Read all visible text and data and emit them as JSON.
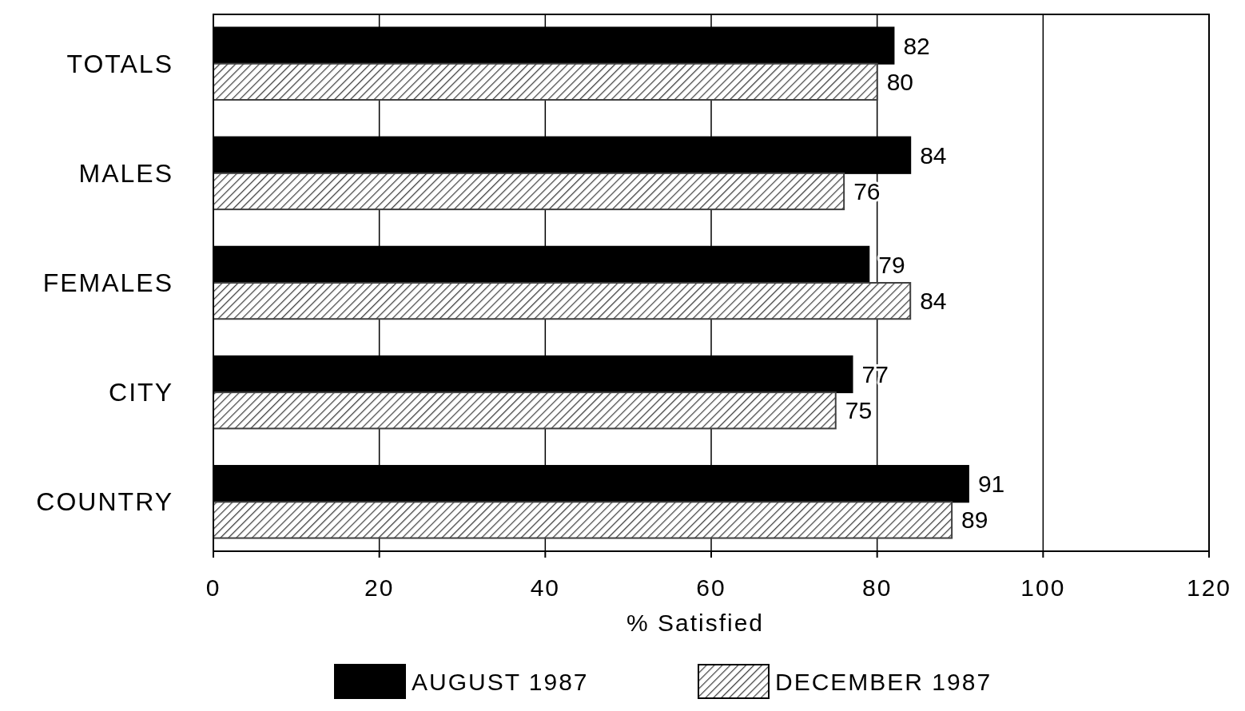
{
  "chart_data": {
    "type": "bar",
    "orientation": "horizontal",
    "categories": [
      "TOTALS",
      "MALES",
      "FEMALES",
      "CITY",
      "COUNTRY"
    ],
    "series": [
      {
        "name": "AUGUST 1987",
        "color": "#000000",
        "values": [
          82,
          84,
          79,
          77,
          91
        ]
      },
      {
        "name": "DECEMBER 1987",
        "color": "#404040",
        "values": [
          80,
          76,
          84,
          75,
          89
        ]
      }
    ],
    "xlabel": "% Satisfied",
    "xlim": [
      0,
      120
    ],
    "xticks": [
      0,
      20,
      40,
      60,
      80,
      100,
      120
    ],
    "grid": "x",
    "legend": "bottom",
    "data_labels": true
  }
}
